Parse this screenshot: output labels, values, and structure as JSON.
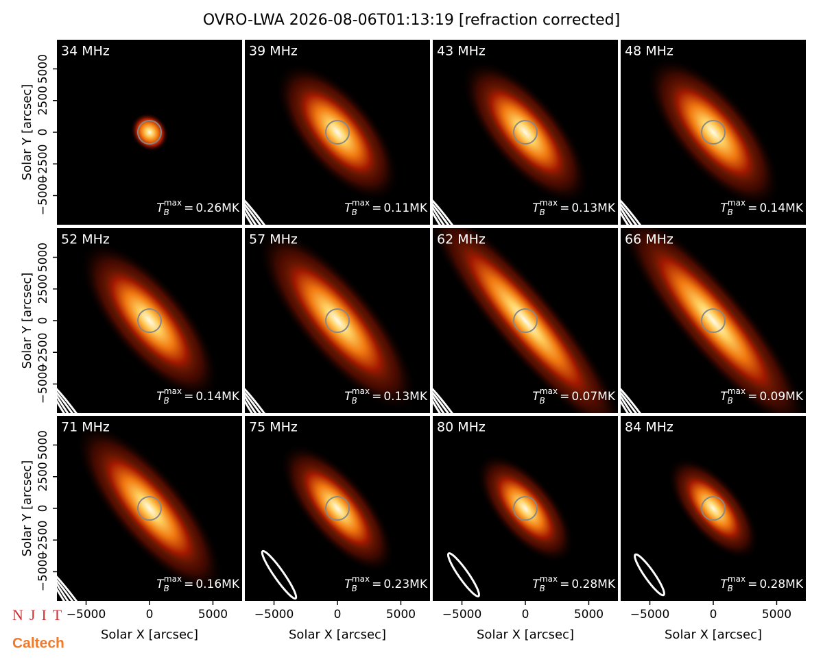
{
  "chart_data": {
    "type": "image-grid",
    "title": "OVRO-LWA 2026-08-06T01:13:19 [refraction corrected]",
    "xlabel": "Solar X [arcsec]",
    "ylabel": "Solar Y [arcsec]",
    "xlim": [
      -7300,
      7300
    ],
    "ylim": [
      -7300,
      7300
    ],
    "xticks": [
      {
        "value": -5000,
        "label": "−5000"
      },
      0,
      5000
    ],
    "yticks": [
      {
        "value": -5000,
        "label": "−5000"
      },
      {
        "value": -2500,
        "label": "−2500"
      },
      0,
      2500,
      5000
    ],
    "tmax_text": {
      "symbol": "T",
      "subscript": "B",
      "superscript": "max",
      "equals": "=",
      "unit": "MK"
    },
    "panels": [
      {
        "label": "34 MHz",
        "tmax": 0.26
      },
      {
        "label": "39 MHz",
        "tmax": 0.11
      },
      {
        "label": "43 MHz",
        "tmax": 0.13
      },
      {
        "label": "48 MHz",
        "tmax": 0.14
      },
      {
        "label": "52 MHz",
        "tmax": 0.14
      },
      {
        "label": "57 MHz",
        "tmax": 0.13
      },
      {
        "label": "62 MHz",
        "tmax": 0.07
      },
      {
        "label": "66 MHz",
        "tmax": 0.09
      },
      {
        "label": "71 MHz",
        "tmax": 0.16
      },
      {
        "label": "75 MHz",
        "tmax": 0.23
      },
      {
        "label": "80 MHz",
        "tmax": 0.28
      },
      {
        "label": "84 MHz",
        "tmax": 0.28
      }
    ],
    "logos": [
      "NJIT",
      "Caltech"
    ]
  }
}
